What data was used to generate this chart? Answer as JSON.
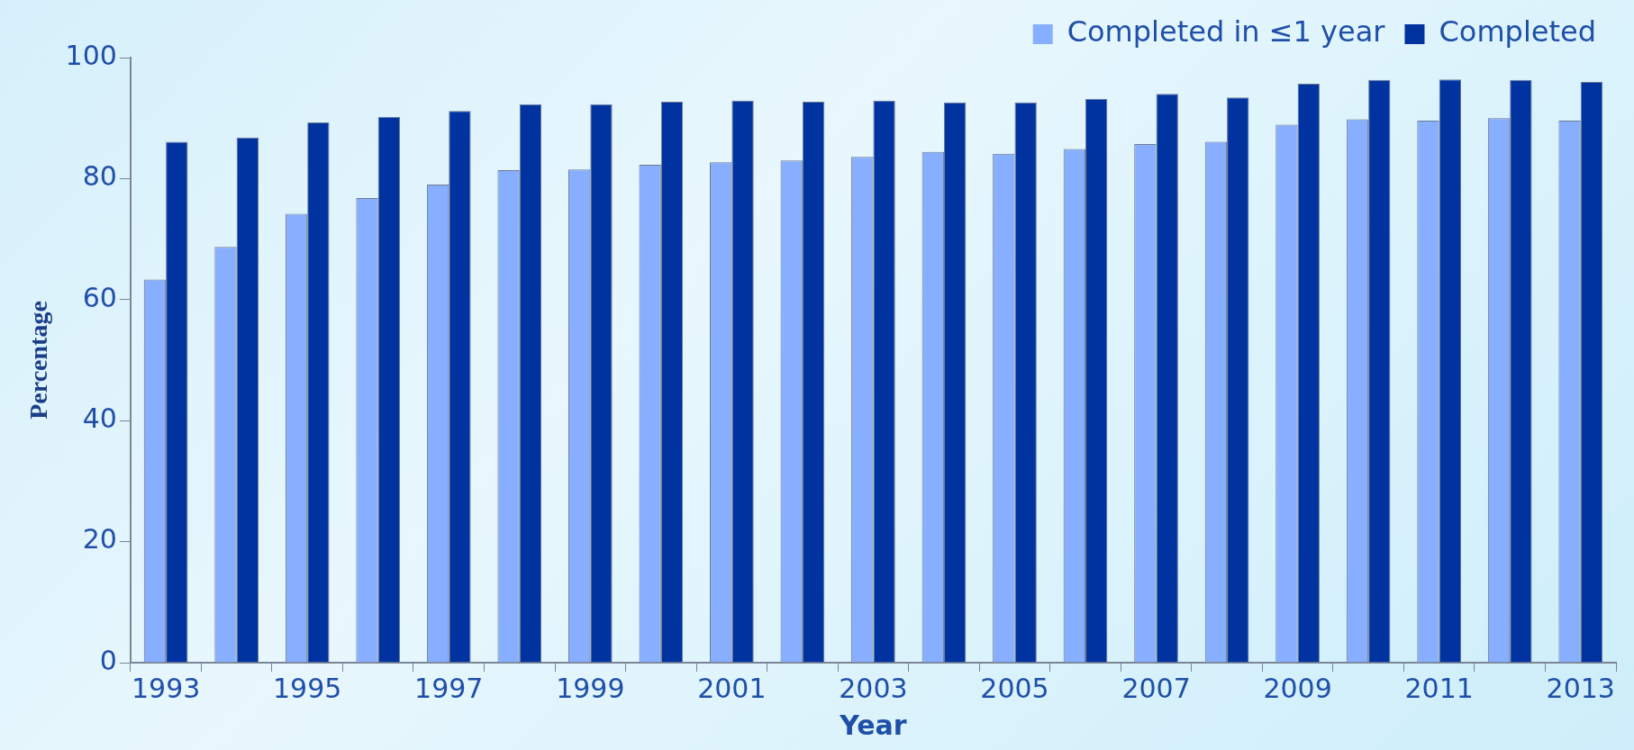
{
  "chart_data": {
    "type": "bar",
    "xlabel": "Year",
    "ylabel": "Percentage",
    "categories": [
      "1993",
      null,
      "1995",
      null,
      "1997",
      null,
      "1999",
      null,
      "2001",
      null,
      "2003",
      null,
      "2005",
      null,
      "2007",
      null,
      "2009",
      null,
      "2011",
      null,
      "2013"
    ],
    "series": [
      {
        "name": "Completed in ≤1 year",
        "color": "#88aeff",
        "values": [
          63.3,
          68.7,
          74.2,
          76.8,
          79.0,
          81.4,
          81.5,
          82.3,
          82.7,
          83.0,
          83.6,
          84.4,
          84.1,
          84.9,
          85.7,
          86.1,
          88.9,
          89.8,
          89.6,
          90.0,
          89.6
        ]
      },
      {
        "name": "Completed",
        "color": "#0033a0",
        "values": [
          86.1,
          86.8,
          89.3,
          90.2,
          91.2,
          92.3,
          92.3,
          92.7,
          92.9,
          92.7,
          92.9,
          92.6,
          92.6,
          93.2,
          94.0,
          93.4,
          95.7,
          96.3,
          96.4,
          96.3,
          96.0
        ]
      }
    ],
    "ylim": [
      0,
      100
    ],
    "yticks": [
      0,
      20,
      40,
      60,
      80,
      100
    ],
    "grid": false,
    "legend": "top right"
  }
}
